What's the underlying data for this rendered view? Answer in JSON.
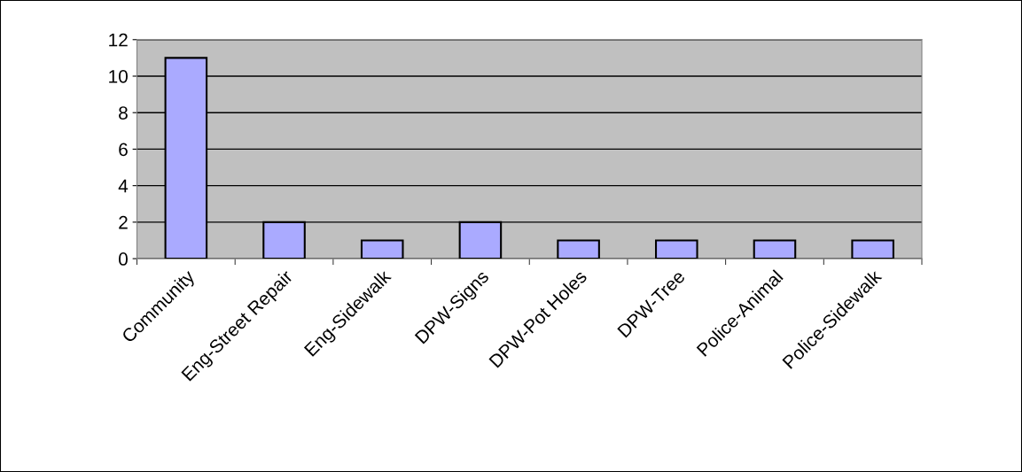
{
  "chart_data": {
    "type": "bar",
    "categories": [
      "Community",
      "Eng-Street Repair",
      "Eng-Sidewalk",
      "DPW-Signs",
      "DPW-Pot Holes",
      "DPW-Tree",
      "Police-Animal",
      "Police-Sidewalk"
    ],
    "values": [
      11,
      2,
      1,
      2,
      1,
      1,
      1,
      1
    ],
    "color": "#aaaaff",
    "ylim": [
      0,
      12
    ],
    "yticks": [
      0,
      2,
      4,
      6,
      8,
      10,
      12
    ],
    "grid": "y"
  }
}
